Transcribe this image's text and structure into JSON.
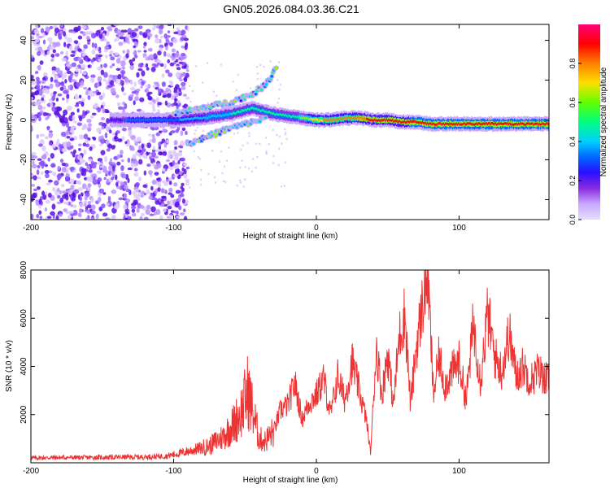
{
  "figure_title": "GN05.2026.084.03.36.C21",
  "colors": {
    "snr_line": "#ee3333",
    "scatter_purple": "#6a1bff",
    "colormap": [
      "#ece2ff",
      "#c8a8ff",
      "#8a2be2",
      "#3a10ff",
      "#0066ff",
      "#00c8ff",
      "#00ff90",
      "#7cff00",
      "#ffe000",
      "#ff8000",
      "#ff0000",
      "#ff007f"
    ]
  },
  "chart_data": [
    {
      "type": "heatmap",
      "title": "",
      "xlabel": "Height of straight line (km)",
      "ylabel": "Frequency (Hz)",
      "xlim": [
        -200,
        163
      ],
      "ylim": [
        -50,
        48
      ],
      "xticks": [
        -200,
        -100,
        0,
        100
      ],
      "yticks": [
        -40,
        -20,
        0,
        20,
        40
      ],
      "colorbar": {
        "label": "Normalized spectral amplitude",
        "range": [
          0,
          1
        ],
        "ticks": [
          0.0,
          0.2,
          0.4,
          0.6,
          0.8
        ]
      },
      "ridge": {
        "description_points_x_km": [
          -145,
          -120,
          -100,
          -80,
          -60,
          -45,
          -30,
          -20,
          -10,
          0,
          10,
          20,
          30,
          40,
          50,
          60,
          70,
          80,
          100,
          120,
          140,
          163
        ],
        "frequency_hz": [
          0,
          0,
          0,
          1,
          3,
          6,
          3,
          2,
          1,
          0,
          0,
          1,
          1,
          0,
          0,
          -1,
          -1,
          -2,
          -2,
          -2,
          -2,
          -2
        ],
        "amplitude": [
          0.3,
          0.35,
          0.4,
          0.45,
          0.5,
          0.55,
          0.5,
          0.55,
          0.6,
          0.75,
          0.8,
          0.82,
          0.85,
          0.88,
          0.9,
          0.9,
          0.92,
          0.95,
          0.95,
          0.95,
          0.95,
          0.95
        ]
      },
      "upper_branch": {
        "x_km": [
          -100,
          -80,
          -60,
          -45,
          -35,
          -28
        ],
        "frequency_hz": [
          3,
          6,
          9,
          13,
          18,
          27
        ]
      },
      "lower_branch": {
        "x_km": [
          -90,
          -75,
          -60,
          -45,
          -35
        ],
        "frequency_hz": [
          -12,
          -8,
          -4,
          -1,
          1
        ]
      }
    },
    {
      "type": "line",
      "title": "",
      "xlabel": "Height of straight line (km)",
      "ylabel": "SNR (10 * v/v)",
      "xlim": [
        -200,
        163
      ],
      "ylim": [
        0,
        8000
      ],
      "xticks": [
        -200,
        -100,
        0,
        100
      ],
      "yticks": [
        2000,
        4000,
        6000,
        8000
      ],
      "series": [
        {
          "name": "SNR",
          "x": [
            -200,
            -180,
            -160,
            -140,
            -120,
            -105,
            -95,
            -85,
            -75,
            -65,
            -58,
            -52,
            -48,
            -44,
            -40,
            -36,
            -30,
            -25,
            -20,
            -15,
            -10,
            -5,
            0,
            5,
            10,
            15,
            20,
            25,
            30,
            35,
            38,
            42,
            46,
            50,
            54,
            58,
            62,
            66,
            70,
            74,
            78,
            82,
            86,
            90,
            95,
            100,
            105,
            110,
            115,
            120,
            125,
            130,
            135,
            140,
            145,
            150,
            155,
            160,
            163
          ],
          "y": [
            200,
            220,
            220,
            230,
            240,
            280,
            400,
            550,
            700,
            1100,
            1600,
            2200,
            3000,
            2000,
            1000,
            900,
            1300,
            2200,
            2400,
            3300,
            1800,
            2500,
            2800,
            3500,
            2000,
            3600,
            2600,
            4200,
            3000,
            1800,
            400,
            4800,
            2800,
            4600,
            2400,
            5200,
            6200,
            2400,
            4800,
            6400,
            8000,
            2800,
            4400,
            3200,
            3800,
            4200,
            2600,
            5800,
            3400,
            6200,
            4400,
            3800,
            5400,
            3600,
            4000,
            3400,
            3800,
            3600,
            3400
          ]
        }
      ]
    }
  ]
}
